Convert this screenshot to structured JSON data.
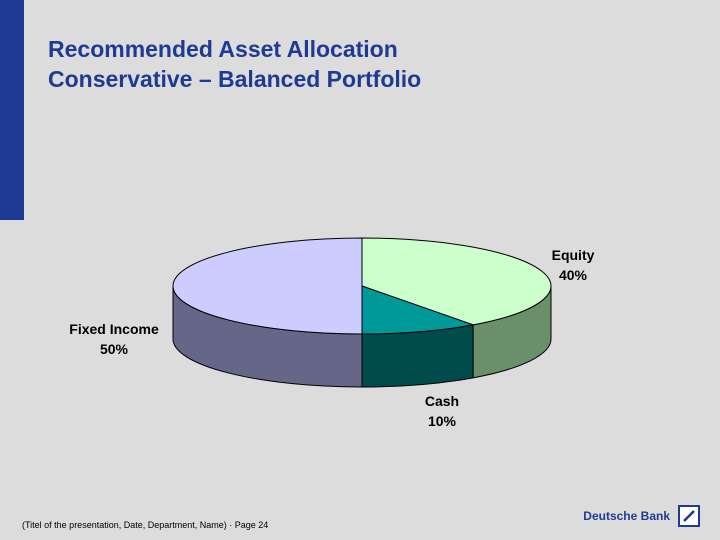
{
  "slide": {
    "title_lines": [
      "Recommended Asset Allocation",
      "Conservative – Balanced Portfolio"
    ],
    "footer": "(Titel of the presentation, Date, Department, Name) · Page 24",
    "brand_name": "Deutsche Bank",
    "brand_icon": "deutsche-bank-slash-logo"
  },
  "colors": {
    "background": "#dcdcdc",
    "accent": "#1f3a93",
    "title": "#1f3a93"
  },
  "chart_data": {
    "type": "pie",
    "title": "",
    "style": "3d-exploded-none",
    "slices": [
      {
        "label": "Equity",
        "value": 40,
        "value_label": "40%",
        "top_color": "#ccffcc",
        "side_color": "#6b8e6b"
      },
      {
        "label": "Cash",
        "value": 10,
        "value_label": "10%",
        "top_color": "#009999",
        "side_color": "#004c4c"
      },
      {
        "label": "Fixed Income",
        "value": 50,
        "value_label": "50%",
        "top_color": "#ccccff",
        "side_color": "#666688"
      }
    ],
    "start_angle_deg": 0,
    "direction": "clockwise",
    "legend": "none"
  }
}
